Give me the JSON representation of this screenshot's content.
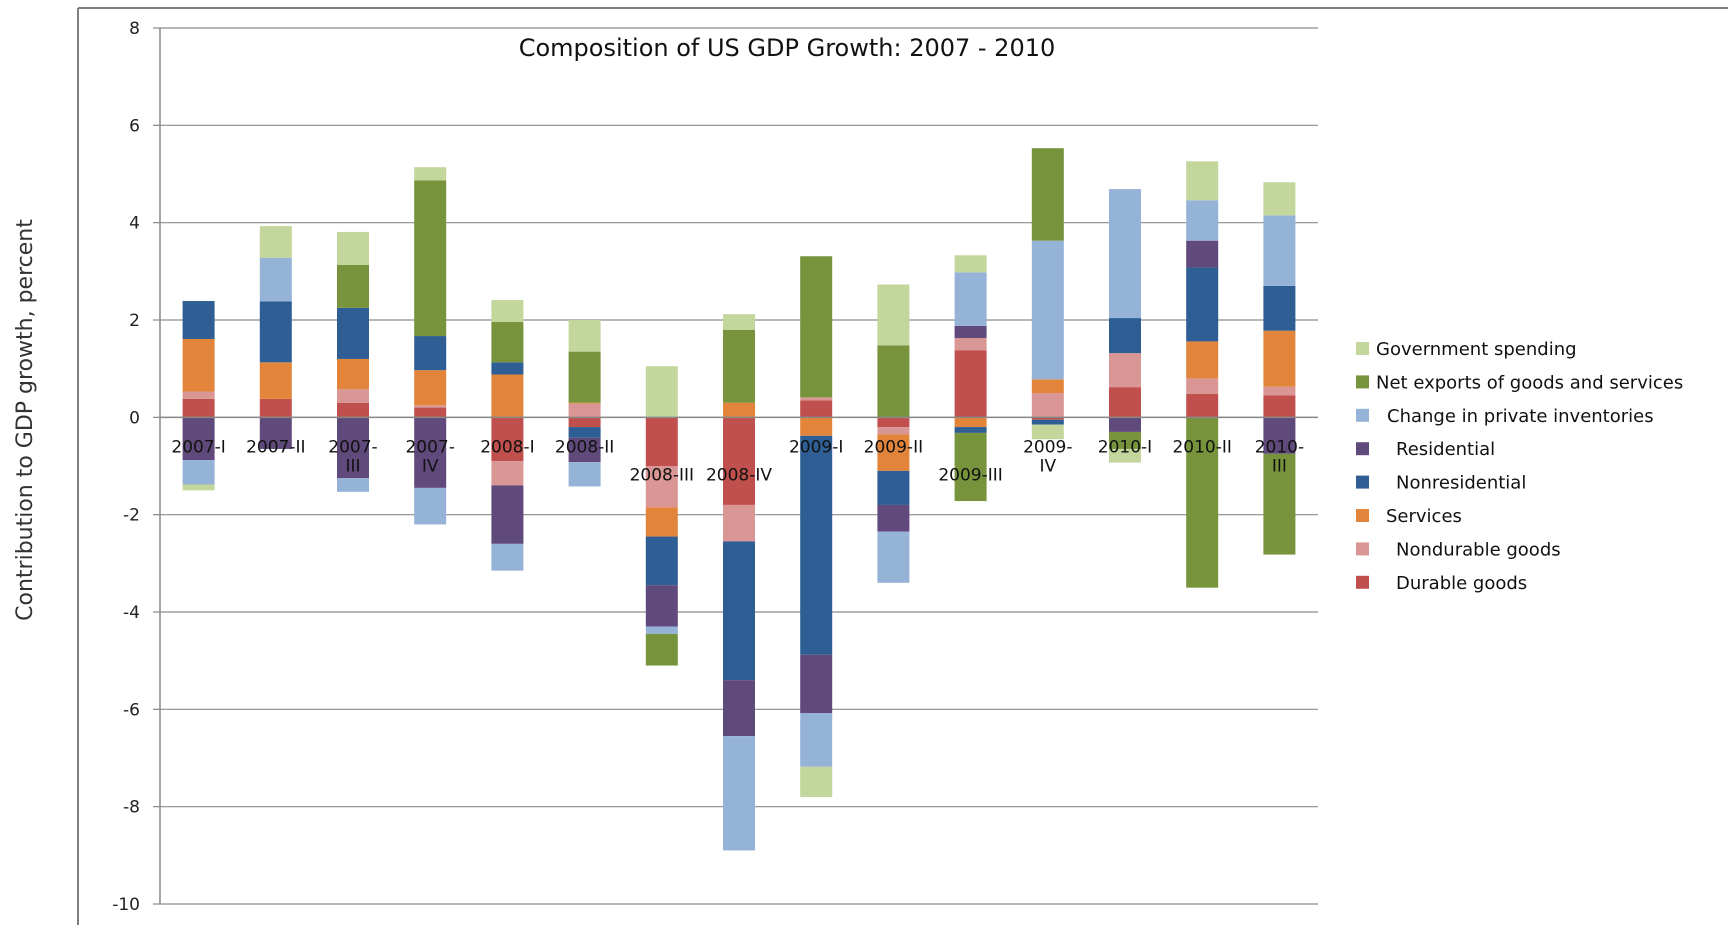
{
  "chart_data": {
    "type": "bar",
    "stacked": true,
    "title": "Composition of US GDP Growth: 2007 - 2010",
    "xlabel": "",
    "ylabel": "Contribution to GDP growth, percent",
    "ylim": [
      -10,
      8
    ],
    "yticks": [
      8,
      6,
      4,
      2,
      0,
      -2,
      -4,
      -6,
      -8,
      -10
    ],
    "grid": true,
    "legend_position": "right",
    "categories": [
      [
        "2007-I"
      ],
      [
        "2007-II"
      ],
      [
        "2007-",
        "III"
      ],
      [
        "2007-",
        "IV"
      ],
      [
        "2008-I"
      ],
      [
        "2008-II"
      ],
      [
        "2008-III"
      ],
      [
        "2008-IV"
      ],
      [
        "2009-I"
      ],
      [
        "2009-II"
      ],
      [
        "2009-III"
      ],
      [
        "2009-",
        "IV"
      ],
      [
        "2010-I"
      ],
      [
        "2010-II"
      ],
      [
        "2010-",
        "III"
      ]
    ],
    "series": [
      {
        "name": "Durable goods",
        "color": "#c0504d",
        "values": [
          0.38,
          0.38,
          0.3,
          0.2,
          -0.9,
          -0.2,
          -1.0,
          -1.8,
          0.35,
          -0.2,
          1.38,
          -0.05,
          0.62,
          0.48,
          0.45
        ]
      },
      {
        "name": "Nondurable goods",
        "color": "#d99694",
        "values": [
          0.15,
          0.0,
          0.28,
          0.05,
          -0.5,
          0.28,
          -0.85,
          -0.75,
          0.06,
          -0.15,
          0.25,
          0.5,
          0.7,
          0.32,
          0.18
        ]
      },
      {
        "name": "Services",
        "color": "#e2853b",
        "values": [
          1.08,
          0.75,
          0.62,
          0.72,
          0.88,
          0.02,
          -0.6,
          0.3,
          -0.38,
          -0.75,
          -0.2,
          0.28,
          0.0,
          0.76,
          1.15
        ]
      },
      {
        "name": "Nonresidential",
        "color": "#2e5e93",
        "values": [
          0.78,
          1.25,
          1.05,
          0.7,
          0.25,
          -0.22,
          -1.0,
          -2.85,
          -4.5,
          -0.7,
          -0.12,
          -0.1,
          0.72,
          1.52,
          0.92
        ]
      },
      {
        "name": "Residential",
        "color": "#604a7b",
        "values": [
          -0.88,
          -0.65,
          -1.25,
          -1.45,
          -1.2,
          -0.5,
          -0.85,
          -1.15,
          -1.2,
          -0.55,
          0.25,
          0.0,
          -0.3,
          0.55,
          -0.75
        ]
      },
      {
        "name": "Change in private inventories",
        "color": "#95b3d7",
        "values": [
          -0.5,
          0.9,
          -0.28,
          -0.75,
          -0.55,
          -0.5,
          -0.15,
          -2.35,
          -1.1,
          -1.05,
          1.1,
          2.85,
          2.65,
          0.83,
          1.45
        ]
      },
      {
        "name": "Net exports of goods and services",
        "color": "#77933c",
        "values": [
          0.0,
          0.0,
          0.88,
          3.2,
          0.83,
          1.05,
          -0.65,
          1.5,
          2.9,
          1.48,
          -1.4,
          1.9,
          -0.35,
          -3.5,
          -2.07
        ]
      },
      {
        "name": "Government spending",
        "color": "#c3d69b",
        "values": [
          -0.12,
          0.65,
          0.68,
          0.27,
          0.45,
          0.65,
          1.05,
          0.32,
          -0.62,
          1.25,
          0.35,
          -0.3,
          -0.28,
          0.8,
          0.68
        ]
      }
    ],
    "legend_order": [
      "Government spending",
      "Net exports of goods and services",
      "Change in private inventories",
      "Residential",
      "Nonresidential",
      "Services",
      "Nondurable goods",
      "Durable goods"
    ],
    "colors": {
      "axis": "#888888",
      "grid": "#8c8c8c",
      "frame": "#7f7f7f"
    }
  }
}
